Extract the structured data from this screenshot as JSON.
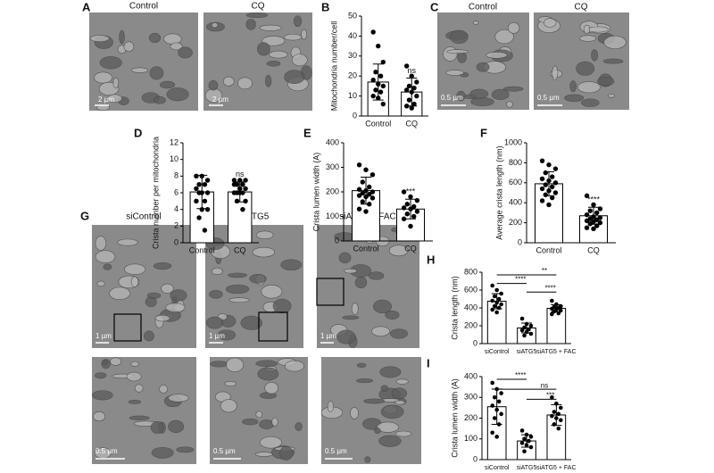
{
  "image_panels": [
    {
      "letter": "A",
      "labels": [
        "Control",
        "CQ"
      ],
      "scale_bars": [
        "2 µm",
        "2 µm"
      ]
    },
    {
      "letter": "C",
      "labels": [
        "Control",
        "CQ"
      ],
      "scale_bars": [
        "0.5 µm",
        "0.5 µm"
      ]
    },
    {
      "letter": "G",
      "labels": [
        "siControl",
        "siATG5",
        "siATG5 + FAC"
      ],
      "scale_bars": [
        "1 µm",
        "1 µm",
        "1 µm",
        "0.5 µm",
        "0.5 µm",
        "0.5 µm"
      ]
    }
  ],
  "chart_data": [
    {
      "type": "bar",
      "letter": "B",
      "ylabel": "Mitochondria number/cell",
      "categories": [
        "Control",
        "CQ"
      ],
      "values": [
        17,
        12
      ],
      "errors": [
        9,
        7
      ],
      "ylim": [
        0,
        50
      ],
      "yticks": [
        0,
        10,
        20,
        30,
        40,
        50
      ],
      "points": [
        [
          42,
          35,
          27,
          22,
          20,
          18,
          16,
          15,
          13,
          12,
          10,
          9,
          6
        ],
        [
          25,
          20,
          17,
          15,
          14,
          13,
          12,
          10,
          8,
          6,
          5,
          4
        ]
      ],
      "annotations": [
        {
          "label": "ns",
          "category": 1
        }
      ]
    },
    {
      "type": "bar",
      "letter": "D",
      "ylabel": "Crista number per mitochondria",
      "categories": [
        "Control",
        "CQ"
      ],
      "values": [
        6.1,
        6.1
      ],
      "errors": [
        2,
        1.2
      ],
      "ylim": [
        0,
        12
      ],
      "yticks": [
        0,
        2,
        4,
        6,
        8,
        10,
        12
      ],
      "points": [
        [
          8,
          8,
          7.5,
          7,
          7,
          6.5,
          6,
          6,
          6,
          5,
          5,
          4,
          4,
          3,
          1.5
        ],
        [
          7.5,
          7.5,
          7.5,
          7,
          7,
          7,
          6.5,
          6.5,
          6,
          6,
          6,
          6,
          5,
          5,
          4
        ]
      ],
      "annotations": [
        {
          "label": "ns",
          "category": 1
        }
      ]
    },
    {
      "type": "bar",
      "letter": "E",
      "ylabel": "Crista lumen width (A)",
      "categories": [
        "Control",
        "CQ"
      ],
      "values": [
        205,
        130
      ],
      "errors": [
        55,
        40
      ],
      "ylim": [
        0,
        400
      ],
      "yticks": [
        0,
        100,
        200,
        300,
        400
      ],
      "points": [
        [
          310,
          290,
          270,
          240,
          220,
          210,
          205,
          200,
          195,
          190,
          185,
          180,
          175,
          160,
          150,
          130,
          120
        ],
        [
          200,
          180,
          165,
          150,
          140,
          135,
          130,
          120,
          110,
          100,
          90,
          60
        ]
      ],
      "annotations": [
        {
          "label": "***",
          "category": 1
        }
      ]
    },
    {
      "type": "bar",
      "letter": "F",
      "ylabel": "Average crista length (nm)",
      "categories": [
        "Control",
        "CQ"
      ],
      "values": [
        590,
        270
      ],
      "errors": [
        120,
        85
      ],
      "ylim": [
        0,
        1000
      ],
      "yticks": [
        0,
        200,
        400,
        600,
        800,
        1000
      ],
      "points": [
        [
          820,
          780,
          740,
          700,
          660,
          640,
          620,
          600,
          580,
          560,
          540,
          520,
          500,
          480,
          450,
          420,
          380
        ],
        [
          470,
          380,
          340,
          320,
          300,
          280,
          260,
          250,
          240,
          230,
          220,
          210,
          200,
          190,
          170,
          150,
          140
        ]
      ],
      "annotations": [
        {
          "label": "****",
          "category": 1
        }
      ]
    },
    {
      "type": "bar",
      "letter": "H",
      "ylabel": "Crista length (nm)",
      "categories": [
        "siControl",
        "siATG5",
        "siATG5 + FAC"
      ],
      "values": [
        475,
        175,
        395
      ],
      "errors": [
        85,
        55,
        40
      ],
      "ylim": [
        0,
        800
      ],
      "yticks": [
        0,
        200,
        400,
        600,
        800
      ],
      "points": [
        [
          650,
          600,
          560,
          530,
          500,
          480,
          460,
          440,
          420,
          400,
          380,
          350
        ],
        [
          280,
          220,
          200,
          180,
          160,
          150,
          130,
          110,
          90
        ],
        [
          480,
          440,
          420,
          410,
          400,
          390,
          380,
          370,
          360,
          340,
          330
        ]
      ],
      "annotations": [
        {
          "label": "**",
          "between": [
            0,
            2
          ]
        },
        {
          "label": "****",
          "between": [
            0,
            1
          ]
        },
        {
          "label": "****",
          "between": [
            1,
            2
          ]
        }
      ]
    },
    {
      "type": "bar",
      "letter": "I",
      "ylabel": "Crista lumen width (A)",
      "categories": [
        "siControl",
        "siATG5",
        "siATG5 + FAC"
      ],
      "values": [
        255,
        90,
        215
      ],
      "errors": [
        85,
        30,
        50
      ],
      "ylim": [
        0,
        400
      ],
      "yticks": [
        0,
        100,
        200,
        300,
        400
      ],
      "points": [
        [
          370,
          340,
          320,
          300,
          280,
          260,
          240,
          220,
          200,
          170,
          130,
          110
        ],
        [
          140,
          120,
          110,
          100,
          90,
          80,
          70,
          60,
          40
        ],
        [
          300,
          270,
          250,
          230,
          220,
          210,
          200,
          190,
          170,
          150
        ]
      ],
      "annotations": [
        {
          "label": "****",
          "between": [
            0,
            1
          ]
        },
        {
          "label": "ns",
          "between": [
            0,
            2
          ]
        },
        {
          "label": "***",
          "between": [
            1,
            2
          ]
        }
      ]
    }
  ]
}
